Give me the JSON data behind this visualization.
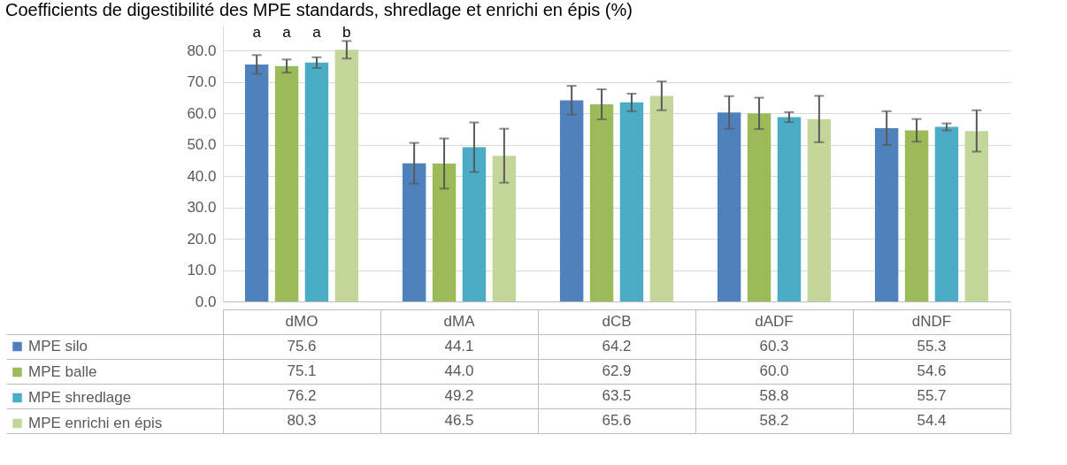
{
  "chart_data": {
    "type": "bar",
    "title": "Coefficients de digestibilité des MPE standards, shredlage et enrichi en épis (%)",
    "categories": [
      "dMO",
      "dMA",
      "dCB",
      "dADF",
      "dNDF"
    ],
    "series": [
      {
        "name": "MPE silo",
        "color": "#4f81bd",
        "values": [
          75.6,
          44.1,
          64.2,
          60.3,
          55.3
        ],
        "errors": [
          3.0,
          6.5,
          4.6,
          5.2,
          5.4
        ],
        "value_labels": [
          "75.6",
          "44.1",
          "64.2",
          "60.3",
          "55.3"
        ]
      },
      {
        "name": "MPE balle",
        "color": "#9bbb59",
        "values": [
          75.1,
          44.0,
          62.9,
          60.0,
          54.6
        ],
        "errors": [
          2.1,
          8.0,
          4.8,
          5.0,
          3.6
        ],
        "value_labels": [
          "75.1",
          "44.0",
          "62.9",
          "60.0",
          "54.6"
        ]
      },
      {
        "name": "MPE shredlage",
        "color": "#4bacc6",
        "values": [
          76.2,
          49.2,
          63.5,
          58.8,
          55.7
        ],
        "errors": [
          1.7,
          7.9,
          2.8,
          1.6,
          1.1
        ],
        "value_labels": [
          "76.2",
          "49.2",
          "63.5",
          "58.8",
          "55.7"
        ]
      },
      {
        "name": "MPE enrichi en épis",
        "color": "#c4d79b",
        "values": [
          80.3,
          46.5,
          65.6,
          58.2,
          54.4
        ],
        "errors": [
          2.8,
          8.6,
          4.6,
          7.4,
          6.6
        ],
        "value_labels": [
          "80.3",
          "46.5",
          "65.6",
          "58.2",
          "54.4"
        ]
      }
    ],
    "ylim": [
      0,
      88
    ],
    "yticks": [
      {
        "value": 0,
        "label": "0.0"
      },
      {
        "value": 10,
        "label": "10.0"
      },
      {
        "value": 20,
        "label": "20.0"
      },
      {
        "value": 30,
        "label": "30.0"
      },
      {
        "value": 40,
        "label": "40.0"
      },
      {
        "value": 50,
        "label": "50.0"
      },
      {
        "value": 60,
        "label": "60.0"
      },
      {
        "value": 70,
        "label": "70.0"
      },
      {
        "value": 80,
        "label": "80.0"
      }
    ],
    "grid": "y",
    "legend": "bottom",
    "annotations": [
      "a",
      "a",
      "a",
      "b"
    ]
  }
}
